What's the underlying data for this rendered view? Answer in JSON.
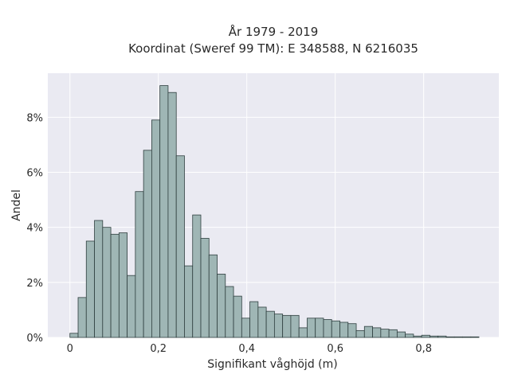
{
  "chart_data": {
    "type": "bar",
    "title_line1": "År 1979 - 2019",
    "title_line2": "Koordinat (Sweref 99 TM): E 348588, N 6216035",
    "xlabel": "Signifikant våghöjd (m)",
    "ylabel": "Andel",
    "xlim": [
      -0.05,
      0.97
    ],
    "ylim": [
      0,
      9.6
    ],
    "x_ticks": [
      0,
      0.2,
      0.4,
      0.6,
      0.8
    ],
    "x_tick_labels": [
      "0",
      "0,2",
      "0,4",
      "0,6",
      "0,8"
    ],
    "y_ticks": [
      0,
      2,
      4,
      6,
      8
    ],
    "y_tick_labels": [
      "0%",
      "2%",
      "4%",
      "6%",
      "8%"
    ],
    "grid": true,
    "bin_width": 0.0185,
    "bin_start": 0,
    "values": [
      0.15,
      1.45,
      3.5,
      4.25,
      4.0,
      3.75,
      3.8,
      2.25,
      5.3,
      6.8,
      7.9,
      9.15,
      8.9,
      6.6,
      2.6,
      4.45,
      3.6,
      3.0,
      2.3,
      1.85,
      1.5,
      0.7,
      1.3,
      1.1,
      0.95,
      0.85,
      0.8,
      0.8,
      0.35,
      0.7,
      0.7,
      0.65,
      0.6,
      0.55,
      0.5,
      0.25,
      0.4,
      0.35,
      0.3,
      0.28,
      0.2,
      0.12,
      0.05,
      0.08,
      0.05,
      0.05,
      0.02,
      0.02,
      0.02,
      0.02
    ]
  },
  "colors": {
    "plot_bg": "#eaeaf2",
    "grid": "#ffffff",
    "bar_fill": "#9fb6b5",
    "bar_stroke": "#2f3f3f",
    "text": "#2a2a2a"
  }
}
